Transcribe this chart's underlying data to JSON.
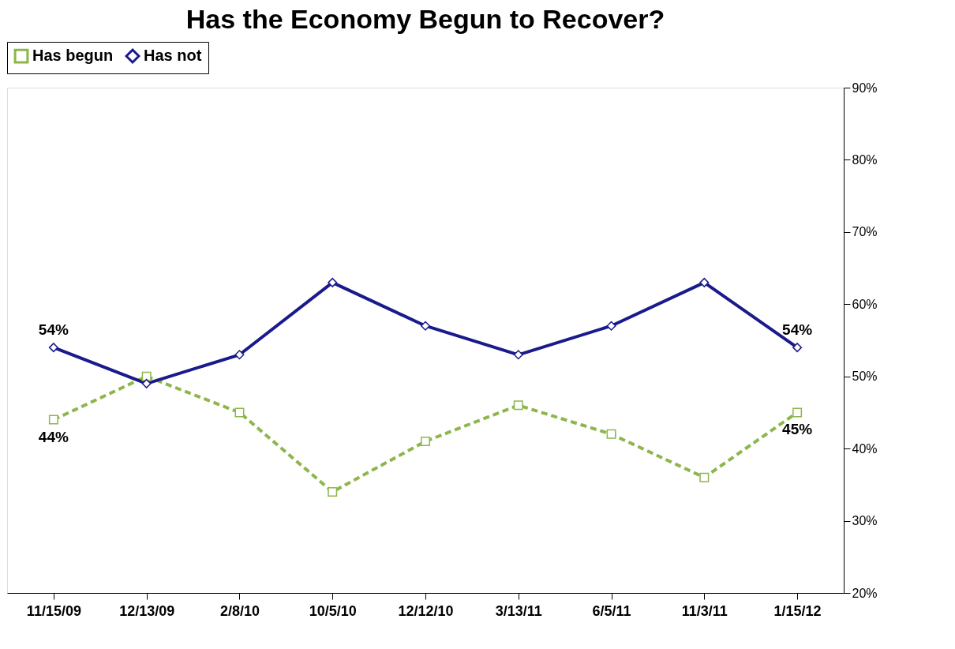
{
  "chart_data": {
    "type": "line",
    "title": "Has the Economy Begun to Recover?",
    "categories": [
      "11/15/09",
      "12/13/09",
      "2/8/10",
      "10/5/10",
      "12/12/10",
      "3/13/11",
      "6/5/11",
      "11/3/11",
      "1/15/12"
    ],
    "series": [
      {
        "name": "Has begun",
        "color": "#8db64b",
        "values": [
          44,
          50,
          45,
          34,
          41,
          46,
          42,
          36,
          45
        ],
        "marker": "square",
        "line_style": "dashed",
        "value_labels": [
          "44%",
          null,
          null,
          null,
          null,
          null,
          null,
          null,
          "45%"
        ]
      },
      {
        "name": "Has not",
        "color": "#1a1a8c",
        "values": [
          54,
          49,
          53,
          63,
          57,
          53,
          57,
          63,
          54
        ],
        "marker": "diamond",
        "line_style": "solid",
        "value_labels": [
          "54%",
          null,
          null,
          null,
          null,
          null,
          null,
          null,
          "54%"
        ]
      }
    ],
    "ylim": [
      20,
      90
    ],
    "yticks": [
      {
        "value": 20,
        "label": "20%"
      },
      {
        "value": 30,
        "label": "30%"
      },
      {
        "value": 40,
        "label": "40%"
      },
      {
        "value": 50,
        "label": "50%"
      },
      {
        "value": 60,
        "label": "60%"
      },
      {
        "value": 70,
        "label": "70%"
      },
      {
        "value": 80,
        "label": "80%"
      },
      {
        "value": 90,
        "label": "90%"
      }
    ],
    "legend": "top",
    "grid": false
  }
}
